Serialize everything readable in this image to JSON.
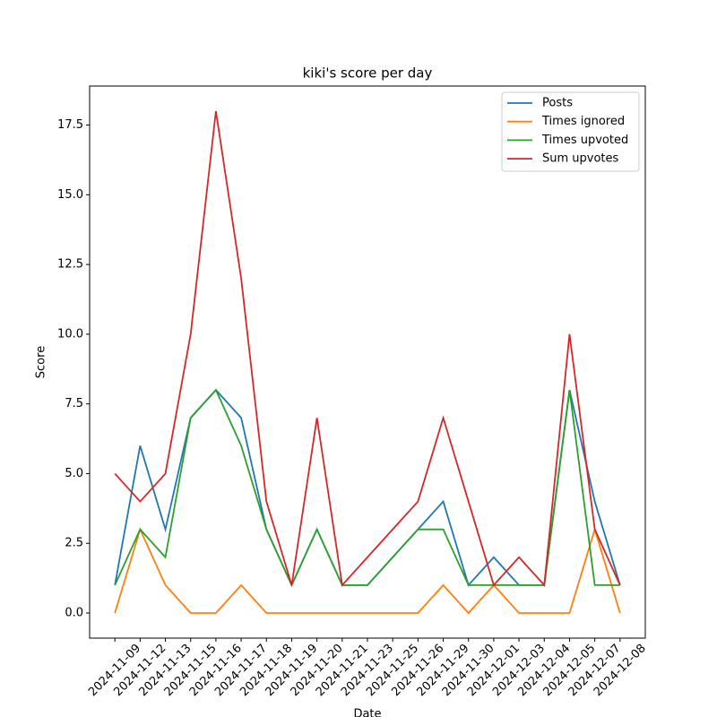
{
  "chart_data": {
    "type": "line",
    "title": "kiki's score per day",
    "xlabel": "Date",
    "ylabel": "Score",
    "categories": [
      "2024-11-09",
      "2024-11-12",
      "2024-11-13",
      "2024-11-15",
      "2024-11-16",
      "2024-11-17",
      "2024-11-18",
      "2024-11-19",
      "2024-11-20",
      "2024-11-21",
      "2024-11-23",
      "2024-11-25",
      "2024-11-26",
      "2024-11-29",
      "2024-11-30",
      "2024-12-01",
      "2024-12-03",
      "2024-12-04",
      "2024-12-05",
      "2024-12-07",
      "2024-12-08"
    ],
    "series": [
      {
        "name": "Posts",
        "color": "#1f77b4",
        "values": [
          1,
          6,
          3,
          7,
          8,
          7,
          3,
          1,
          3,
          1,
          1,
          2,
          3,
          4,
          1,
          2,
          1,
          1,
          8,
          4,
          1
        ]
      },
      {
        "name": "Times ignored",
        "color": "#ff7f0e",
        "values": [
          0,
          3,
          1,
          0,
          0,
          1,
          0,
          0,
          0,
          0,
          0,
          0,
          0,
          1,
          0,
          1,
          0,
          0,
          0,
          3,
          0
        ]
      },
      {
        "name": "Times upvoted",
        "color": "#2ca02c",
        "values": [
          1,
          3,
          2,
          7,
          8,
          6,
          3,
          1,
          3,
          1,
          1,
          2,
          3,
          3,
          1,
          1,
          1,
          1,
          8,
          1,
          1
        ]
      },
      {
        "name": "Sum upvotes",
        "color": "#d62728",
        "values": [
          5,
          4,
          5,
          10,
          18,
          12,
          4,
          1,
          7,
          1,
          2,
          3,
          4,
          7,
          4,
          1,
          2,
          1,
          10,
          3,
          1
        ]
      }
    ],
    "ylim": [
      -0.9,
      18.9
    ],
    "yticks": [
      {
        "value": 0,
        "label": "0.0"
      },
      2.5,
      {
        "value": 5,
        "label": "5.0"
      },
      7.5,
      {
        "value": 10,
        "label": "10.0"
      },
      12.5,
      {
        "value": 15,
        "label": "15.0"
      },
      17.5
    ],
    "legend": "upper right"
  }
}
